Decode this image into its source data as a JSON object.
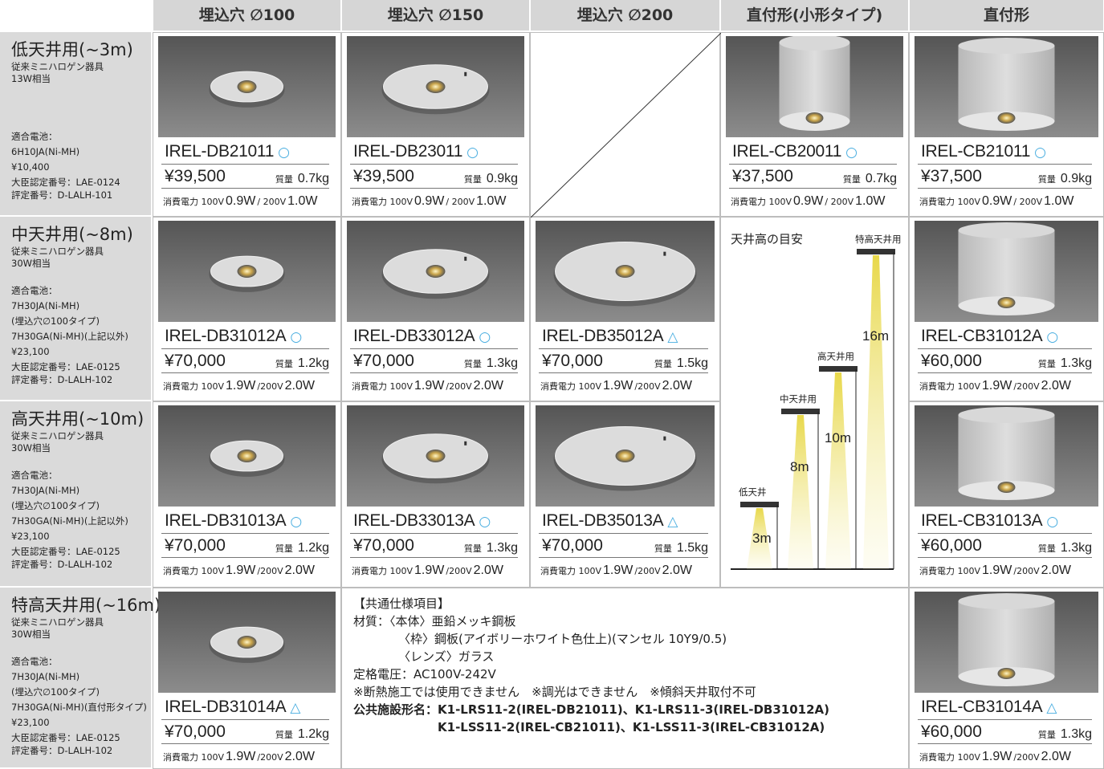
{
  "header": {
    "columns": [
      "埋込穴 ∅100",
      "埋込穴 ∅150",
      "埋込穴 ∅200",
      "直付形(小形タイプ)",
      "直付形"
    ]
  },
  "rows": [
    {
      "title": "低天井用(~3m)",
      "lamp": [
        "従来ミニハロゲン器具",
        "13W相当"
      ],
      "battery_label": "適合電池：",
      "battery": [
        "6H10JA(Ni-MH)",
        "¥10,400"
      ],
      "cert": [
        "大臣認定番号：LAE-0124",
        "評定番号：D-LALH-101"
      ],
      "products": [
        {
          "model": "IREL-DB21011",
          "mark": "○",
          "price": "¥39,500",
          "weight": [
            "質量",
            "0.7kg"
          ],
          "power": [
            "消費電力 100V",
            "0.9W",
            "/ 200V",
            "1.0W"
          ]
        },
        {
          "model": "IREL-DB23011",
          "mark": "○",
          "price": "¥39,500",
          "weight": [
            "質量",
            "0.9kg"
          ],
          "power": [
            "消費電力 100V",
            "0.9W",
            "/ 200V",
            "1.0W"
          ]
        },
        {
          "model": "IREL-CB20011",
          "mark": "○",
          "price": "¥37,500",
          "weight": [
            "質量",
            "0.7kg"
          ],
          "power": [
            "消費電力 100V",
            "0.9W",
            "/ 200V",
            "1.0W"
          ]
        },
        {
          "model": "IREL-CB21011",
          "mark": "○",
          "price": "¥37,500",
          "weight": [
            "質量",
            "0.9kg"
          ],
          "power": [
            "消費電力 100V",
            "0.9W",
            "/ 200V",
            "1.0W"
          ]
        }
      ]
    },
    {
      "title": "中天井用(~8m)",
      "lamp": [
        "従来ミニハロゲン器具",
        "30W相当"
      ],
      "battery_label": "適合電池：",
      "battery": [
        "7H30JA(Ni-MH)",
        "(埋込穴∅100タイプ)",
        "7H30GA(Ni-MH)(上記以外)",
        "¥23,100"
      ],
      "cert": [
        "大臣認定番号：LAE-0125",
        "評定番号：D-LALH-102"
      ],
      "products": [
        {
          "model": "IREL-DB31012A",
          "mark": "○",
          "price": "¥70,000",
          "weight": [
            "質量",
            "1.2kg"
          ],
          "power": [
            "消費電力 100V",
            "1.9W",
            "/200V",
            "2.0W"
          ]
        },
        {
          "model": "IREL-DB33012A",
          "mark": "○",
          "price": "¥70,000",
          "weight": [
            "質量",
            "1.3kg"
          ],
          "power": [
            "消費電力 100V",
            "1.9W",
            "/200V",
            "2.0W"
          ]
        },
        {
          "model": "IREL-DB35012A",
          "mark": "△",
          "price": "¥70,000",
          "weight": [
            "質量",
            "1.5kg"
          ],
          "power": [
            "消費電力 100V",
            "1.9W",
            "/200V",
            "2.0W"
          ]
        },
        {
          "model": "IREL-CB31012A",
          "mark": "○",
          "price": "¥60,000",
          "weight": [
            "質量",
            "1.3kg"
          ],
          "power": [
            "消費電力 100V",
            "1.9W",
            "/200V",
            "2.0W"
          ]
        }
      ]
    },
    {
      "title": "高天井用(~10m)",
      "lamp": [
        "従来ミニハロゲン器具",
        "30W相当"
      ],
      "battery_label": "適合電池：",
      "battery": [
        "7H30JA(Ni-MH)",
        "(埋込穴∅100タイプ)",
        "7H30GA(Ni-MH)(上記以外)",
        "¥23,100"
      ],
      "cert": [
        "大臣認定番号：LAE-0125",
        "評定番号：D-LALH-102"
      ],
      "products": [
        {
          "model": "IREL-DB31013A",
          "mark": "○",
          "price": "¥70,000",
          "weight": [
            "質量",
            "1.2kg"
          ],
          "power": [
            "消費電力 100V",
            "1.9W",
            "/200V",
            "2.0W"
          ]
        },
        {
          "model": "IREL-DB33013A",
          "mark": "○",
          "price": "¥70,000",
          "weight": [
            "質量",
            "1.3kg"
          ],
          "power": [
            "消費電力 100V",
            "1.9W",
            "/200V",
            "2.0W"
          ]
        },
        {
          "model": "IREL-DB35013A",
          "mark": "△",
          "price": "¥70,000",
          "weight": [
            "質量",
            "1.5kg"
          ],
          "power": [
            "消費電力 100V",
            "1.9W",
            "/200V",
            "2.0W"
          ]
        },
        {
          "model": "IREL-CB31013A",
          "mark": "○",
          "price": "¥60,000",
          "weight": [
            "質量",
            "1.3kg"
          ],
          "power": [
            "消費電力 100V",
            "1.9W",
            "/200V",
            "2.0W"
          ]
        }
      ]
    },
    {
      "title": "特高天井用(~16m)",
      "lamp": [
        "従来ミニハロゲン器具",
        "30W相当"
      ],
      "battery_label": "適合電池：",
      "battery": [
        "7H30JA(Ni-MH)",
        "(埋込穴∅100タイプ)",
        "7H30GA(Ni-MH)(直付形タイプ)",
        "¥23,100"
      ],
      "cert": [
        "大臣認定番号：LAE-0125",
        "評定番号：D-LALH-102"
      ],
      "products": [
        {
          "model": "IREL-DB31014A",
          "mark": "△",
          "price": "¥70,000",
          "weight": [
            "質量",
            "1.2kg"
          ],
          "power": [
            "消費電力 100V",
            "1.9W",
            "/200V",
            "2.0W"
          ]
        },
        {
          "model": "IREL-CB31014A",
          "mark": "△",
          "price": "¥60,000",
          "weight": [
            "質量",
            "1.3kg"
          ],
          "power": [
            "消費電力 100V",
            "1.9W",
            "/200V",
            "2.0W"
          ]
        }
      ]
    }
  ],
  "guide": {
    "title": "天井高の目安",
    "levels": [
      {
        "label": "特高天井用",
        "height": "16m"
      },
      {
        "label": "高天井用",
        "height": "10m"
      },
      {
        "label": "中天井用",
        "height": "8m"
      },
      {
        "label": "低天井",
        "height": "3m"
      }
    ]
  },
  "notes": {
    "heading": "【共通仕様項目】",
    "lines": [
      "材質：〈本体〉亜鉛メッキ鋼板",
      "〈枠〉鋼板(アイボリーホワイト色仕上)(マンセル 10Y9/0.5)",
      "〈レンズ〉ガラス",
      "定格電圧：AC100V-242V",
      "※断熱施工では使用できません　※調光はできません　※傾斜天井取付不可"
    ],
    "public_label": "公共施設形名：",
    "public": [
      "K1-LRS11-2(IREL-DB21011)、K1-LRS11-3(IREL-DB31012A)",
      "K1-LSS11-2(IREL-CB21011)、K1-LSS11-3(IREL-CB31012A)"
    ]
  }
}
